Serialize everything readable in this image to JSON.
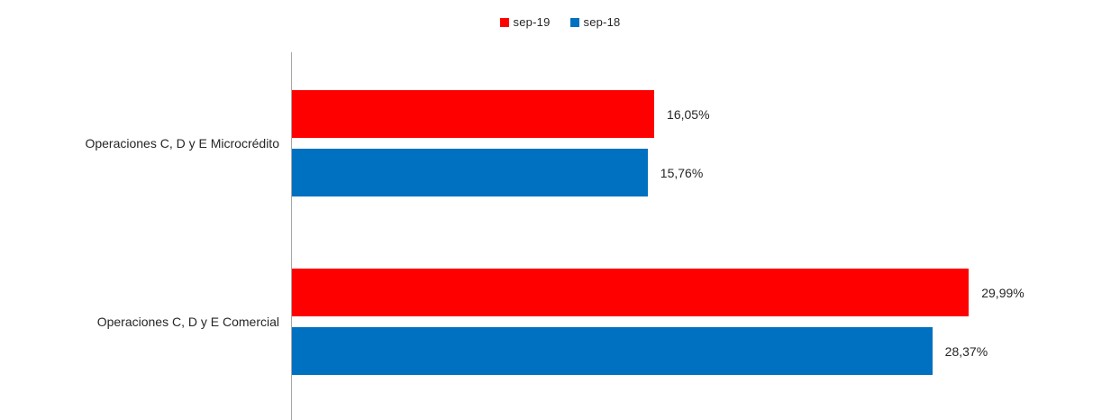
{
  "chart_data": {
    "type": "bar",
    "orientation": "horizontal",
    "title": "",
    "xlabel": "",
    "ylabel": "",
    "grid": false,
    "legend_position": "top-center",
    "xlim": [
      0,
      36.7
    ],
    "categories": [
      "Operaciones C, D y E Microcrédito",
      "Operaciones C, D y E Comercial"
    ],
    "series": [
      {
        "name": "sep-19",
        "color": "#ff0000",
        "values": [
          16.05,
          29.99
        ],
        "value_labels": [
          "16,05%",
          "29,99%"
        ]
      },
      {
        "name": "sep-18",
        "color": "#0070c0",
        "values": [
          15.76,
          28.37
        ],
        "value_labels": [
          "15,76%",
          "28,37%"
        ]
      }
    ],
    "axis_line_color": "#a6a6a6",
    "text_color": "#262626"
  }
}
